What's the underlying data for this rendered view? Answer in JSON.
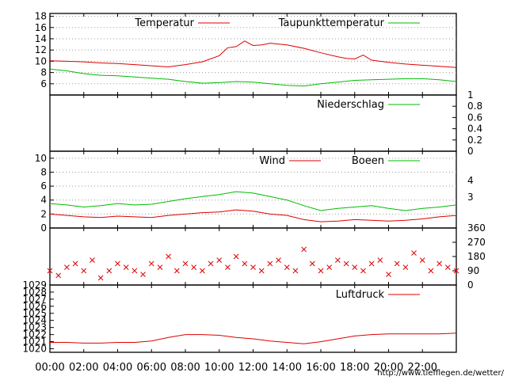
{
  "credit": "http://www.tiefflegen.de/wetter/",
  "x_ticks": [
    "00:00",
    "02:00",
    "04:00",
    "06:00",
    "08:00",
    "10:00",
    "12:00",
    "14:00",
    "16:00",
    "18:00",
    "20:00",
    "22:00"
  ],
  "colors": {
    "red": "#dd0000",
    "green": "#00bb00",
    "grid": "#999999"
  },
  "chart_data": [
    {
      "type": "line",
      "ylim": [
        4,
        18.5
      ],
      "yticks": [
        "6",
        "8",
        "10",
        "12",
        "14",
        "16",
        "18"
      ],
      "series": [
        {
          "name": "Temperatur",
          "color": "#dd0000",
          "x": [
            0,
            1,
            2,
            3,
            4,
            5,
            6,
            7,
            8,
            9,
            10,
            10.5,
            11,
            11.5,
            12,
            12.5,
            13,
            14,
            15,
            16,
            17,
            17.5,
            18,
            18.5,
            19,
            20,
            21,
            22,
            23,
            24
          ],
          "y": [
            10.1,
            10.0,
            9.9,
            9.7,
            9.6,
            9.4,
            9.2,
            9.0,
            9.4,
            9.9,
            11.0,
            12.4,
            12.6,
            13.6,
            12.8,
            12.9,
            13.2,
            12.9,
            12.3,
            11.5,
            10.8,
            10.5,
            10.4,
            11.1,
            10.2,
            9.8,
            9.5,
            9.3,
            9.1,
            8.9
          ]
        },
        {
          "name": "Taupunkttemperatur",
          "color": "#00bb00",
          "x": [
            0,
            1,
            2,
            3,
            4,
            5,
            6,
            7,
            8,
            9,
            10,
            11,
            12,
            13,
            14,
            15,
            16,
            17,
            18,
            19,
            20,
            21,
            22,
            23,
            24
          ],
          "y": [
            8.6,
            8.3,
            7.8,
            7.5,
            7.4,
            7.2,
            7.0,
            6.8,
            6.4,
            6.1,
            6.2,
            6.4,
            6.3,
            6.0,
            5.7,
            5.6,
            6.0,
            6.3,
            6.6,
            6.7,
            6.8,
            6.9,
            6.9,
            6.7,
            6.4
          ]
        }
      ]
    },
    {
      "type": "line",
      "ylim": [
        0,
        1
      ],
      "yticks": [
        "0",
        "0.2",
        "0.4",
        "0.6",
        "0.8",
        "1"
      ],
      "series": [
        {
          "name": "Niederschlag",
          "color": "#00bb00",
          "x": [
            0,
            24
          ],
          "y": [
            0,
            0
          ]
        }
      ]
    },
    {
      "type": "line",
      "ylim": [
        0,
        11
      ],
      "yticks": [
        "0",
        "2",
        "4",
        "6",
        "8",
        "10"
      ],
      "right_ticks": [
        "4",
        "3"
      ],
      "series": [
        {
          "name": "Wind",
          "color": "#dd0000",
          "x": [
            0,
            1,
            2,
            3,
            4,
            5,
            6,
            7,
            8,
            9,
            10,
            11,
            12,
            13,
            14,
            15,
            16,
            17,
            18,
            19,
            20,
            21,
            22,
            23,
            24
          ],
          "y": [
            2.0,
            1.8,
            1.6,
            1.5,
            1.7,
            1.6,
            1.5,
            1.8,
            2.0,
            2.2,
            2.3,
            2.6,
            2.4,
            2.0,
            1.8,
            1.2,
            0.9,
            1.0,
            1.2,
            1.1,
            1.0,
            1.1,
            1.3,
            1.6,
            1.8
          ]
        },
        {
          "name": "Boeen",
          "color": "#00bb00",
          "x": [
            0,
            1,
            2,
            3,
            4,
            5,
            6,
            7,
            8,
            9,
            10,
            11,
            12,
            13,
            14,
            15,
            16,
            17,
            18,
            19,
            20,
            21,
            22,
            23,
            24
          ],
          "y": [
            3.5,
            3.3,
            3.0,
            3.2,
            3.5,
            3.3,
            3.4,
            3.8,
            4.2,
            4.5,
            4.8,
            5.2,
            5.0,
            4.5,
            4.0,
            3.2,
            2.5,
            2.8,
            3.0,
            3.2,
            2.8,
            2.5,
            2.8,
            3.0,
            3.3
          ]
        }
      ]
    },
    {
      "type": "scatter",
      "ylim": [
        0,
        360
      ],
      "yticks": [
        "0",
        "90",
        "180",
        "270",
        "360"
      ],
      "series": [
        {
          "name": "",
          "color": "#dd0000",
          "x": [
            0,
            0.5,
            1,
            1.5,
            2,
            2.5,
            3,
            3.5,
            4,
            4.5,
            5,
            5.5,
            6,
            6.5,
            7,
            7.5,
            8,
            8.5,
            9,
            9.5,
            10,
            10.5,
            11,
            11.5,
            12,
            12.5,
            13,
            13.5,
            14,
            14.5,
            15,
            15.5,
            16,
            16.5,
            17,
            17.5,
            18,
            18.5,
            19,
            19.5,
            20,
            20.5,
            21,
            21.5,
            22,
            22.5,
            23,
            23.5,
            24
          ],
          "y": [
            90,
            60,
            112,
            135,
            90,
            157,
            45,
            90,
            135,
            112,
            90,
            67,
            135,
            112,
            180,
            90,
            135,
            112,
            90,
            135,
            157,
            112,
            180,
            135,
            112,
            90,
            135,
            157,
            112,
            90,
            225,
            135,
            90,
            112,
            157,
            135,
            112,
            90,
            135,
            157,
            67,
            135,
            112,
            202,
            157,
            90,
            135,
            112,
            90
          ]
        }
      ]
    },
    {
      "type": "line",
      "ylim": [
        1019.5,
        1029
      ],
      "yticks": [
        "1020",
        "1021",
        "1022",
        "1023",
        "1024",
        "1025",
        "1026",
        "1027",
        "1028",
        "1029"
      ],
      "series": [
        {
          "name": "Luftdruck",
          "color": "#dd0000",
          "x": [
            0,
            1,
            2,
            3,
            4,
            5,
            6,
            7,
            8,
            9,
            10,
            11,
            12,
            13,
            14,
            15,
            16,
            17,
            18,
            19,
            20,
            21,
            22,
            23,
            24
          ],
          "y": [
            1020.9,
            1020.9,
            1020.8,
            1020.8,
            1020.9,
            1020.9,
            1021.1,
            1021.6,
            1022.0,
            1022.0,
            1021.9,
            1021.6,
            1021.4,
            1021.1,
            1020.9,
            1020.7,
            1021.0,
            1021.4,
            1021.8,
            1022.0,
            1022.1,
            1022.1,
            1022.1,
            1022.1,
            1022.2
          ]
        }
      ]
    }
  ]
}
